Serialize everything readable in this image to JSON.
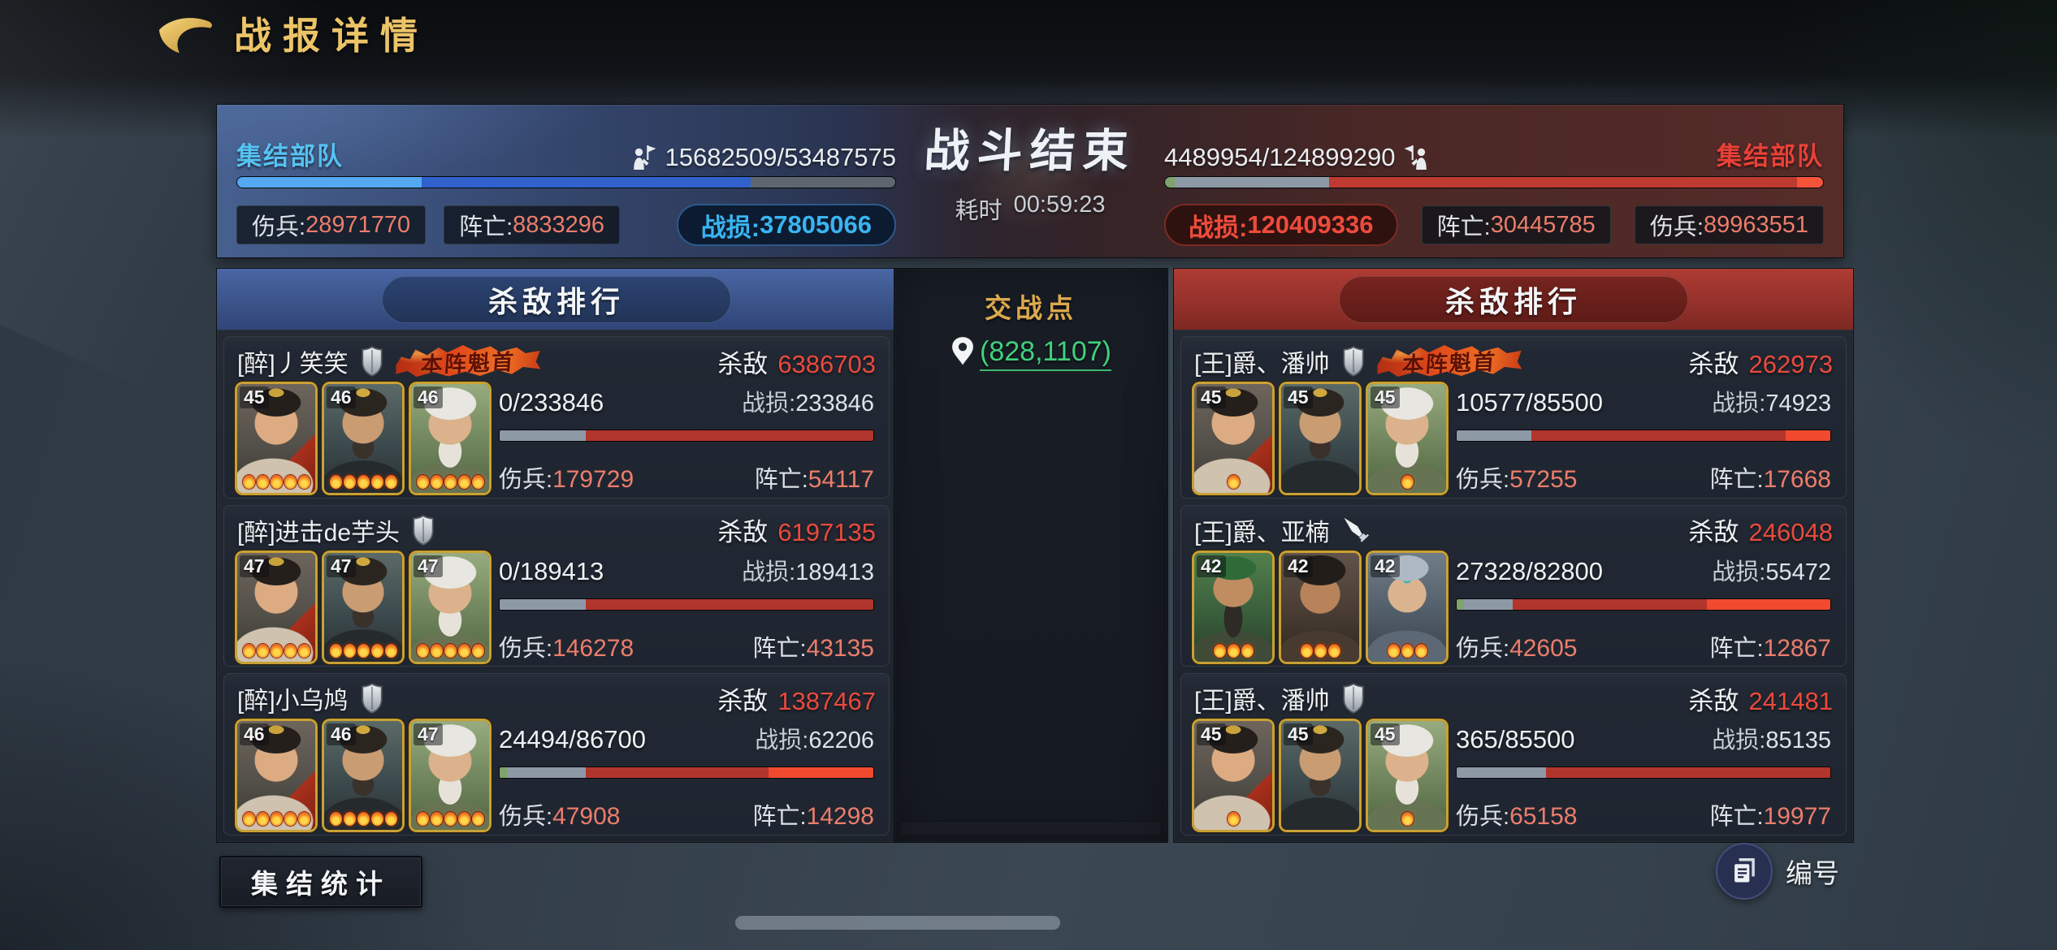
{
  "header": {
    "title": "战报详情"
  },
  "labels": {
    "wounded": "伤兵:",
    "dead": "阵亡:",
    "loss": "战损:",
    "kills": "杀敌",
    "duration": "耗时"
  },
  "summary": {
    "result_title": "战斗结束",
    "duration": "00:59:23",
    "left": {
      "team": "集结部队",
      "accent": "#56c2f2",
      "troops": "15682509/53487575",
      "wounded": "28971770",
      "dead": "8833296",
      "loss": "37805066",
      "bar": [
        {
          "color": "#55a9f2",
          "pct": 28
        },
        {
          "color": "#3061cc",
          "pct": 50
        },
        {
          "color": "#5e6670",
          "pct": 22
        }
      ]
    },
    "right": {
      "team": "集结部队",
      "accent": "#ea4038",
      "troops": "4489954/124899290",
      "wounded": "89963551",
      "dead": "30445785",
      "loss": "120409336",
      "bar": [
        {
          "color": "#7fa36b",
          "pct": 1.5
        },
        {
          "color": "#8e99a6",
          "pct": 23.5
        },
        {
          "color": "#bf3a30",
          "pct": 71
        },
        {
          "color": "#f5543a",
          "pct": 4
        }
      ]
    }
  },
  "battle_point": {
    "title": "交战点",
    "coords": "(828,1107)"
  },
  "badge_text": "本阵魁首",
  "panels": {
    "left": {
      "title": "杀敌排行",
      "theme": "blue",
      "entries": [
        {
          "name": "[醉]丿笑笑",
          "weapon_icon": "shield",
          "mvp": true,
          "kills": "6386703",
          "heroes": [
            {
              "level": "45",
              "stars": 5,
              "art": "youth-red"
            },
            {
              "level": "46",
              "stars": 5,
              "art": "lord-dark"
            },
            {
              "level": "46",
              "stars": 5,
              "art": "elder-green"
            }
          ],
          "troops": "0/233846",
          "loss": "233846",
          "wounded": "179729",
          "dead": "54117",
          "bar": [
            {
              "color": "#8e99a6",
              "pct": 23
            },
            {
              "color": "#b2352c",
              "pct": 77
            }
          ]
        },
        {
          "name": "[醉]进击de芋头",
          "weapon_icon": "shield",
          "mvp": false,
          "kills": "6197135",
          "heroes": [
            {
              "level": "47",
              "stars": 5,
              "art": "youth-red"
            },
            {
              "level": "47",
              "stars": 5,
              "art": "lord-dark"
            },
            {
              "level": "47",
              "stars": 5,
              "art": "elder-green"
            }
          ],
          "troops": "0/189413",
          "loss": "189413",
          "wounded": "146278",
          "dead": "43135",
          "bar": [
            {
              "color": "#8e99a6",
              "pct": 23
            },
            {
              "color": "#b2352c",
              "pct": 77
            }
          ]
        },
        {
          "name": "[醉]小乌鸠",
          "weapon_icon": "shield",
          "mvp": false,
          "kills": "1387467",
          "heroes": [
            {
              "level": "46",
              "stars": 5,
              "art": "youth-red"
            },
            {
              "level": "46",
              "stars": 5,
              "art": "lord-dark"
            },
            {
              "level": "47",
              "stars": 5,
              "art": "elder-green"
            }
          ],
          "troops": "24494/86700",
          "loss": "62206",
          "wounded": "47908",
          "dead": "14298",
          "bar": [
            {
              "color": "#7fa36b",
              "pct": 2
            },
            {
              "color": "#8e99a6",
              "pct": 21
            },
            {
              "color": "#b2352c",
              "pct": 49
            },
            {
              "color": "#ef4a2e",
              "pct": 28
            }
          ]
        }
      ]
    },
    "right": {
      "title": "杀敌排行",
      "theme": "red",
      "entries": [
        {
          "name": "[王]爵、潘帅",
          "weapon_icon": "shield",
          "mvp": true,
          "kills": "262973",
          "heroes": [
            {
              "level": "45",
              "stars": 1,
              "art": "youth-red"
            },
            {
              "level": "45",
              "stars": 0,
              "art": "lord-dark"
            },
            {
              "level": "45",
              "stars": 1,
              "art": "elder-green"
            }
          ],
          "troops": "10577/85500",
          "loss": "74923",
          "wounded": "57255",
          "dead": "17668",
          "bar": [
            {
              "color": "#8e99a6",
              "pct": 20
            },
            {
              "color": "#b2352c",
              "pct": 68
            },
            {
              "color": "#ef4a2e",
              "pct": 12
            }
          ]
        },
        {
          "name": "[王]爵、亚楠",
          "weapon_icon": "dagger",
          "mvp": false,
          "kills": "246048",
          "heroes": [
            {
              "level": "42",
              "stars": 3,
              "art": "guanyu"
            },
            {
              "level": "42",
              "stars": 3,
              "art": "zhangfei"
            },
            {
              "level": "42",
              "stars": 3,
              "art": "zhaoyun"
            }
          ],
          "troops": "27328/82800",
          "loss": "55472",
          "wounded": "42605",
          "dead": "12867",
          "bar": [
            {
              "color": "#7fa36b",
              "pct": 2
            },
            {
              "color": "#8e99a6",
              "pct": 13
            },
            {
              "color": "#b2352c",
              "pct": 52
            },
            {
              "color": "#ef4a2e",
              "pct": 33
            }
          ]
        },
        {
          "name": "[王]爵、潘帅",
          "weapon_icon": "shield",
          "mvp": false,
          "kills": "241481",
          "heroes": [
            {
              "level": "45",
              "stars": 1,
              "art": "youth-red"
            },
            {
              "level": "45",
              "stars": 0,
              "art": "lord-dark"
            },
            {
              "level": "45",
              "stars": 1,
              "art": "elder-green"
            }
          ],
          "troops": "365/85500",
          "loss": "85135",
          "wounded": "65158",
          "dead": "19977",
          "bar": [
            {
              "color": "#8e99a6",
              "pct": 24
            },
            {
              "color": "#b2352c",
              "pct": 76
            }
          ]
        }
      ]
    }
  },
  "footer": {
    "stats_button": "集结统计",
    "number_button": "编号"
  }
}
